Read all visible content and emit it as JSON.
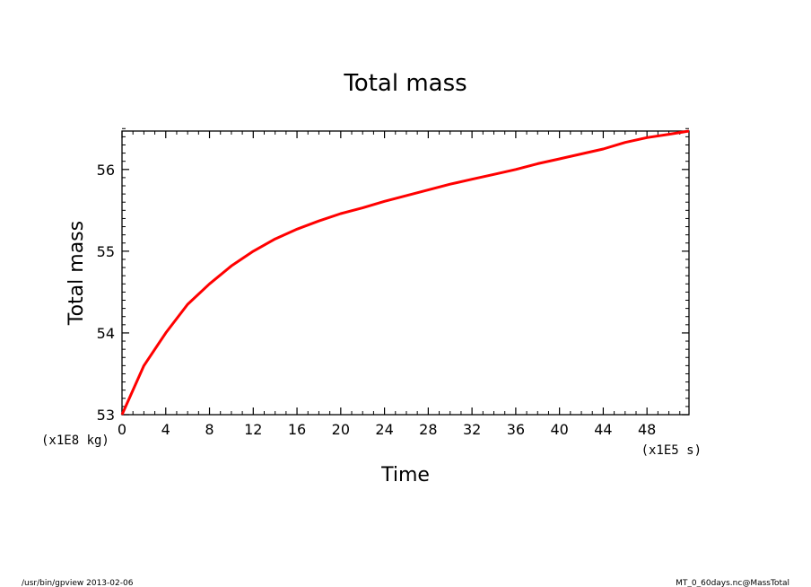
{
  "chart_data": {
    "type": "line",
    "title": "Total mass",
    "xlabel": "Time",
    "ylabel": "Total mass",
    "x_unit": "(x1E5 s)",
    "y_unit": "(x1E8 kg)",
    "xlim": [
      0,
      51.84
    ],
    "ylim": [
      53,
      56.47
    ],
    "x_ticks": [
      0,
      4,
      8,
      12,
      16,
      20,
      24,
      28,
      32,
      36,
      40,
      44,
      48
    ],
    "y_ticks": [
      53,
      54,
      55,
      56
    ],
    "grid": false,
    "line_color": "#ff0000",
    "series": [
      {
        "x": [
          0,
          2,
          4,
          6,
          8,
          10,
          12,
          14,
          16,
          18,
          20,
          22,
          24,
          26,
          28,
          30,
          32,
          34,
          36,
          38,
          40,
          42,
          44,
          46,
          48,
          50,
          51.84
        ],
        "y": [
          53.0,
          53.6,
          54.0,
          54.35,
          54.6,
          54.82,
          55.0,
          55.15,
          55.27,
          55.37,
          55.46,
          55.53,
          55.61,
          55.68,
          55.75,
          55.82,
          55.88,
          55.94,
          56.0,
          56.07,
          56.13,
          56.19,
          56.25,
          56.33,
          56.39,
          56.43,
          56.47
        ]
      }
    ]
  },
  "footer": {
    "left": "/usr/bin/gpview  2013-02-06",
    "right": "MT_0_60days.nc@MassTotal"
  }
}
